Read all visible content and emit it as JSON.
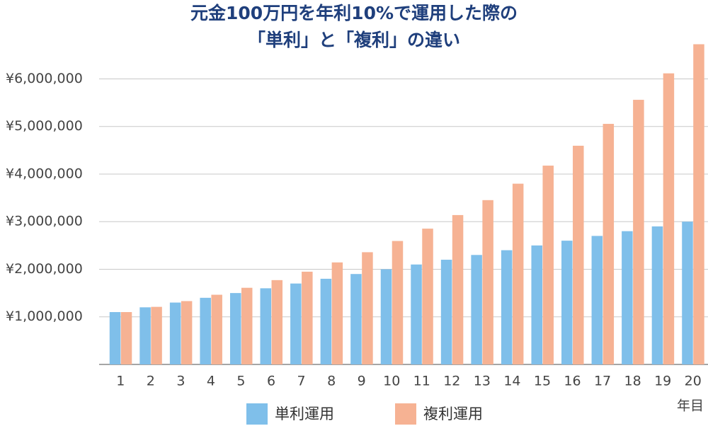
{
  "chart_data": {
    "type": "bar",
    "title": [
      "元金100万円を年利10%で運用した際の",
      "「単利」と「複利」の違い"
    ],
    "categories": [
      "1",
      "2",
      "3",
      "4",
      "5",
      "6",
      "7",
      "8",
      "9",
      "10",
      "11",
      "12",
      "13",
      "14",
      "15",
      "16",
      "17",
      "18",
      "19",
      "20"
    ],
    "x_label": "年目",
    "series": [
      {
        "name": "単利運用",
        "color": "#7fbfea",
        "values": [
          1100000,
          1200000,
          1300000,
          1400000,
          1500000,
          1600000,
          1700000,
          1800000,
          1900000,
          2000000,
          2100000,
          2200000,
          2300000,
          2400000,
          2500000,
          2600000,
          2700000,
          2800000,
          2900000,
          3000000
        ]
      },
      {
        "name": "複利運用",
        "color": "#f6b293",
        "values": [
          1100000,
          1210000,
          1331000,
          1464100,
          1610510,
          1771561,
          1948717,
          2143589,
          2357948,
          2593742,
          2853117,
          3138428,
          3452271,
          3797498,
          4177248,
          4594973,
          5054470,
          5559917,
          6115909,
          6727500
        ]
      }
    ],
    "ylim": [
      0,
      6750000
    ],
    "yticks": [
      {
        "value": 1000000,
        "label": "¥1,000,000"
      },
      {
        "value": 2000000,
        "label": "¥2,000,000"
      },
      {
        "value": 3000000,
        "label": "¥3,000,000"
      },
      {
        "value": 4000000,
        "label": "¥4,000,000"
      },
      {
        "value": 5000000,
        "label": "¥5,000,000"
      },
      {
        "value": 6000000,
        "label": "¥6,000,000"
      }
    ],
    "grid": true
  }
}
